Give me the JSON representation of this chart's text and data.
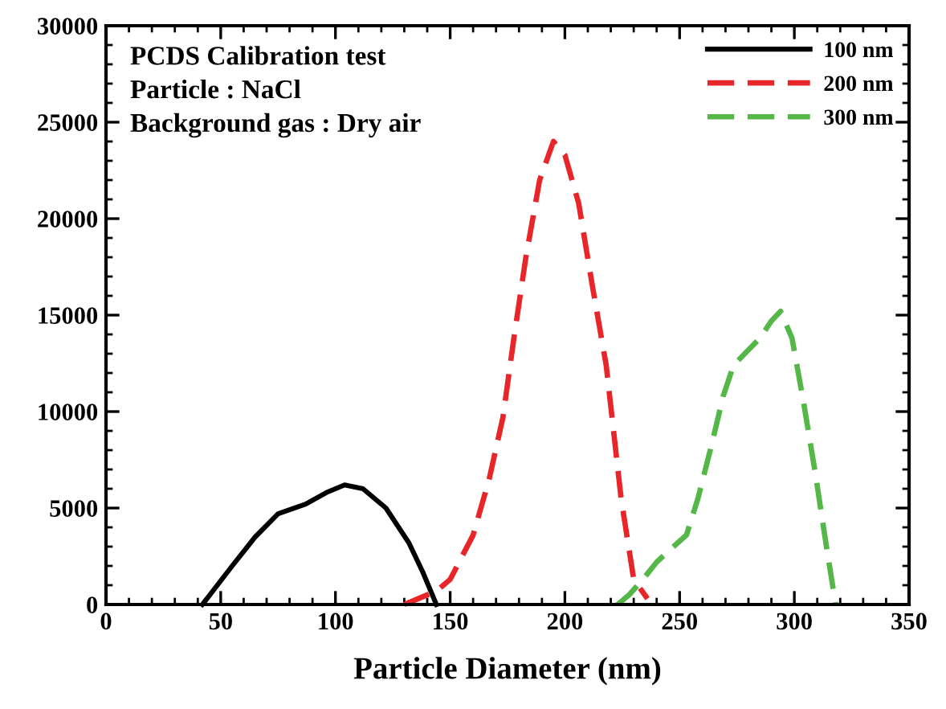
{
  "chart_data": {
    "type": "line",
    "xlabel": "Particle Diameter (nm)",
    "annotations": [
      "PCDS Calibration test",
      "Particle : NaCl",
      "Background gas : Dry air"
    ],
    "series": [
      {
        "name": "100 nm",
        "color": "#000000",
        "line_style": "solid",
        "x": [
          42,
          55,
          65,
          75,
          87,
          96,
          104,
          112,
          122,
          132,
          138,
          144
        ],
        "values": [
          0,
          2000,
          3500,
          4700,
          5200,
          5800,
          6200,
          6000,
          5000,
          3200,
          1700,
          0
        ]
      },
      {
        "name": "200 nm",
        "color": "#e8262a",
        "line_style": "dashed",
        "x": [
          130,
          144,
          150,
          160,
          167,
          173,
          178,
          183,
          189,
          195,
          200,
          206,
          212,
          218,
          224.5,
          230,
          236
        ],
        "values": [
          0,
          700,
          1300,
          3600,
          6500,
          9700,
          14000,
          18000,
          22000,
          24000,
          23300,
          20800,
          16500,
          12400,
          5500,
          1300,
          300
        ]
      },
      {
        "name": "300 nm",
        "color": "#55b748",
        "line_style": "dashed",
        "x": [
          223,
          228,
          234,
          240,
          245.5,
          253,
          258,
          264,
          269,
          273.5,
          280,
          285,
          290,
          294,
          299,
          304,
          309,
          314,
          318
        ],
        "values": [
          0,
          500,
          1300,
          2200,
          2800,
          3600,
          5500,
          8300,
          10800,
          12400,
          13200,
          13800,
          14700,
          15200,
          13800,
          10500,
          6900,
          3000,
          0
        ]
      }
    ],
    "xlim": [
      0,
      350
    ],
    "ylim": [
      0,
      30000
    ],
    "xticks": [
      0,
      50,
      100,
      150,
      200,
      250,
      300,
      350
    ],
    "yticks": [
      0,
      5000,
      10000,
      15000,
      20000,
      25000,
      30000
    ],
    "grid": false,
    "legend": "top right",
    "marker": "none"
  }
}
